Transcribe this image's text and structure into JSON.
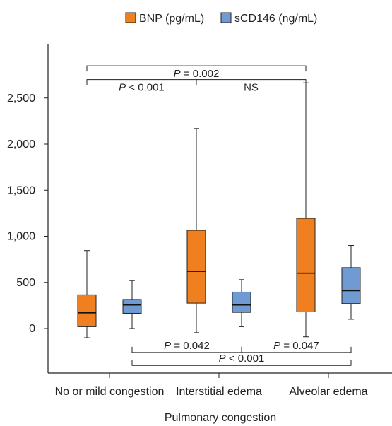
{
  "chart_data": {
    "type": "box",
    "xlabel": "Pulmonary congestion",
    "ylabel": "",
    "ylim": [
      -500,
      3000
    ],
    "yticks": [
      0,
      500,
      1000,
      1500,
      2000,
      2500
    ],
    "ytick_labels": [
      "0",
      "500",
      "1,000",
      "1,500",
      "2,000",
      "2,500"
    ],
    "categories": [
      "No or mild congestion",
      "Interstitial edema",
      "Alveolar edema"
    ],
    "legend": {
      "position": "top-center"
    },
    "series": [
      {
        "name": "BNP (pg/mL)",
        "color": "#F07F1F",
        "boxes": [
          {
            "min": -100,
            "q1": 20,
            "median": 170,
            "q3": 365,
            "max": 845
          },
          {
            "min": -45,
            "q1": 275,
            "median": 620,
            "q3": 1065,
            "max": 2170
          },
          {
            "min": -90,
            "q1": 180,
            "median": 600,
            "q3": 1195,
            "max": 2665
          }
        ]
      },
      {
        "name": "sCD146 (ng/mL)",
        "color": "#6F9BD2",
        "boxes": [
          {
            "min": 0,
            "q1": 165,
            "median": 255,
            "q3": 315,
            "max": 520
          },
          {
            "min": 20,
            "q1": 175,
            "median": 255,
            "q3": 395,
            "max": 530
          },
          {
            "min": 100,
            "q1": 270,
            "median": 410,
            "q3": 660,
            "max": 900
          }
        ]
      }
    ],
    "annotations": [
      {
        "text_prefix": "P",
        "text_value": " = 0.002",
        "from": "0-0",
        "to": "2-0",
        "level": 2850,
        "side": "top"
      },
      {
        "text_prefix": "P",
        "text_value": " < 0.001",
        "from": "0-0",
        "to": "1-0",
        "level": 2700,
        "side": "top"
      },
      {
        "text_prefix": "",
        "text_value": "NS",
        "from": "1-0",
        "to": "2-0",
        "level": 2700,
        "side": "top"
      },
      {
        "text_prefix": "P",
        "text_value": " = 0.042",
        "from": "0-1",
        "to": "1-1",
        "level": -260,
        "side": "bottom"
      },
      {
        "text_prefix": "P",
        "text_value": " = 0.047",
        "from": "1-1",
        "to": "2-1",
        "level": -260,
        "side": "bottom"
      },
      {
        "text_prefix": "P",
        "text_value": " < 0.001",
        "from": "0-1",
        "to": "2-1",
        "level": -400,
        "side": "bottom"
      }
    ]
  }
}
